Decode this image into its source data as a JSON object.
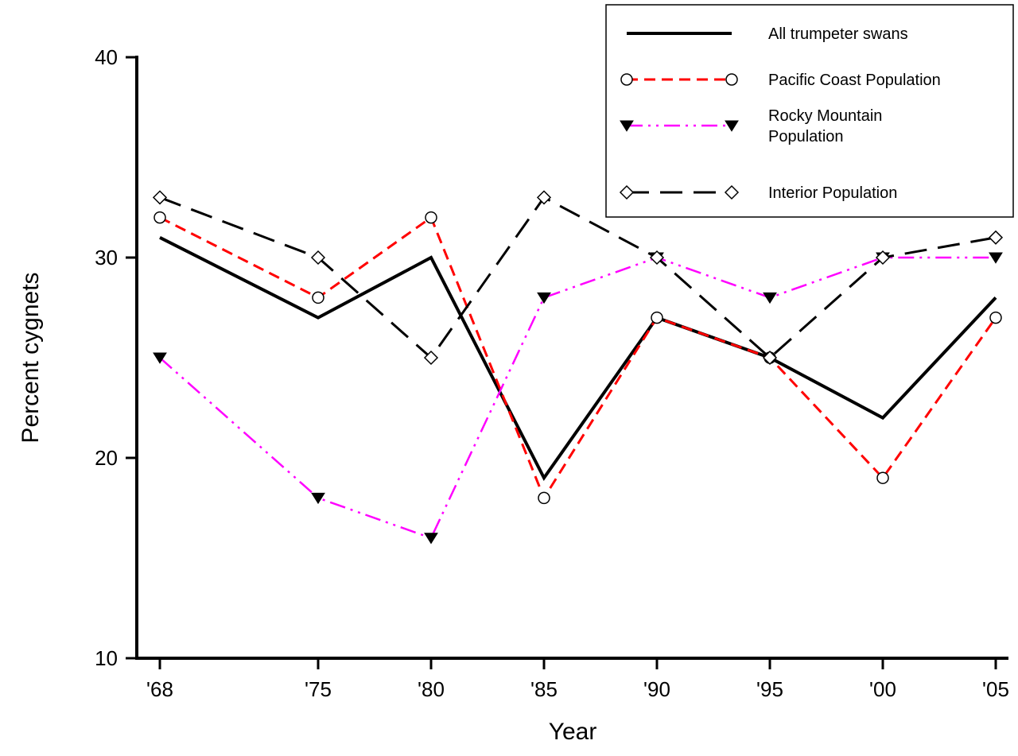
{
  "chart_data": {
    "type": "line",
    "xlabel": "Year",
    "ylabel": "Percent cygnets",
    "x": [
      1968,
      1975,
      1980,
      1985,
      1990,
      1995,
      2000,
      2005
    ],
    "x_tick_labels": [
      "'68",
      "'75",
      "'80",
      "'85",
      "'90",
      "'95",
      "'00",
      "'05"
    ],
    "ylim": [
      10,
      40
    ],
    "y_ticks": [
      10,
      20,
      30,
      40
    ],
    "y_tick_labels": [
      "10",
      "20",
      "30",
      "40"
    ],
    "grid": false,
    "legend_position": "top-right",
    "series": [
      {
        "name": "All trumpeter swans",
        "legend_lines": [
          "All trumpeter swans"
        ],
        "values": [
          31,
          27,
          30,
          19,
          27,
          25,
          22,
          28
        ],
        "color": "#000000",
        "line_style": "solid",
        "marker": "none"
      },
      {
        "name": "Pacific Coast Population",
        "legend_lines": [
          "Pacific Coast Population"
        ],
        "values": [
          32,
          28,
          32,
          18,
          27,
          25,
          19,
          27
        ],
        "color": "#ff0000",
        "line_style": "dashed",
        "marker": "open-circle"
      },
      {
        "name": "Rocky Mountain Population",
        "legend_lines": [
          "Rocky Mountain",
          "Population"
        ],
        "values": [
          25,
          18,
          16,
          28,
          30,
          28,
          30,
          30
        ],
        "color": "#ff00ff",
        "line_style": "dash-dot-dot",
        "marker": "filled-down-triangle"
      },
      {
        "name": "Interior Population",
        "legend_lines": [
          "Interior Population"
        ],
        "values": [
          33,
          30,
          25,
          33,
          30,
          25,
          30,
          31
        ],
        "color": "#000000",
        "line_style": "long-dash",
        "marker": "open-diamond"
      }
    ]
  }
}
